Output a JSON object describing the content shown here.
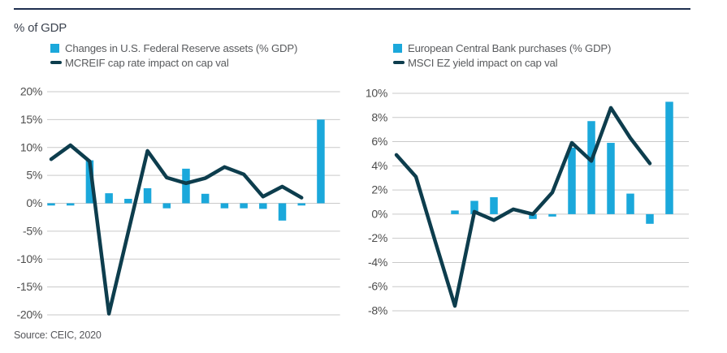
{
  "page": {
    "title_label": "% of GDP",
    "source": "Source: CEIC, 2020"
  },
  "colors": {
    "bar": "#1ba8db",
    "line": "#0d3d4d",
    "top_rule": "#1e2f4f",
    "gridline": "#c9c9c9",
    "axis_text": "#4d4d4d",
    "legend_text": "#595b5e"
  },
  "chart_data": [
    {
      "type": "combo_bar_line",
      "title": "",
      "legend_position": "top",
      "grid": true,
      "legend": [
        {
          "label": "Changes in U.S. Federal Reserve assets (% GDP)",
          "series_type": "bar",
          "color": "#1ba8db"
        },
        {
          "label": "MCREIF cap rate impact on cap val",
          "series_type": "line",
          "color": "#0d3d4d"
        }
      ],
      "y_axis": {
        "max": 20,
        "min": -20,
        "step": 5,
        "unit": "%",
        "tick_labels": [
          "20%",
          "15%",
          "10%",
          "5%",
          "0%",
          "-5%",
          "-10%",
          "-15%",
          "-20%"
        ]
      },
      "x_axis": {
        "tick_labels": []
      },
      "series": [
        {
          "name": "Changes in U.S. Federal Reserve assets (% GDP)",
          "series_type": "bar",
          "color": "#1ba8db",
          "values": [
            -0.4,
            -0.4,
            7.7,
            1.8,
            0.8,
            2.7,
            -0.9,
            6.2,
            1.7,
            -0.9,
            -0.9,
            -1.0,
            -3.1,
            -0.4,
            15.0
          ]
        },
        {
          "name": "MCREIF cap rate impact on cap val",
          "series_type": "line",
          "color": "#0d3d4d",
          "values": [
            7.9,
            10.4,
            7.5,
            -19.8,
            -5.2,
            9.4,
            4.6,
            3.6,
            4.5,
            6.5,
            5.2,
            1.2,
            3.0,
            1.0,
            null
          ]
        }
      ]
    },
    {
      "type": "combo_bar_line",
      "title": "",
      "legend_position": "top",
      "grid": true,
      "legend": [
        {
          "label": "European Central Bank purchases (% GDP)",
          "series_type": "bar",
          "color": "#1ba8db"
        },
        {
          "label": "MSCI EZ yield impact on cap val",
          "series_type": "line",
          "color": "#0d3d4d"
        }
      ],
      "y_axis": {
        "max": 10,
        "min": -8,
        "step": 2,
        "unit": "%",
        "tick_labels": [
          "10%",
          "8%",
          "6%",
          "4%",
          "2%",
          "0%",
          "-2%",
          "-4%",
          "-6%",
          "-8%"
        ]
      },
      "x_axis": {
        "tick_labels": []
      },
      "series": [
        {
          "name": "European Central Bank purchases (% GDP)",
          "series_type": "bar",
          "color": "#1ba8db",
          "values": [
            null,
            null,
            null,
            0.3,
            1.1,
            1.4,
            null,
            -0.4,
            -0.2,
            5.5,
            7.7,
            5.9,
            1.7,
            -0.8,
            9.3
          ]
        },
        {
          "name": "MSCI EZ yield impact on cap val",
          "series_type": "line",
          "color": "#0d3d4d",
          "values": [
            4.9,
            3.1,
            -2.3,
            -7.6,
            0.2,
            -0.5,
            0.4,
            0.0,
            1.8,
            5.9,
            4.4,
            8.8,
            6.3,
            4.2,
            null
          ]
        }
      ]
    }
  ]
}
